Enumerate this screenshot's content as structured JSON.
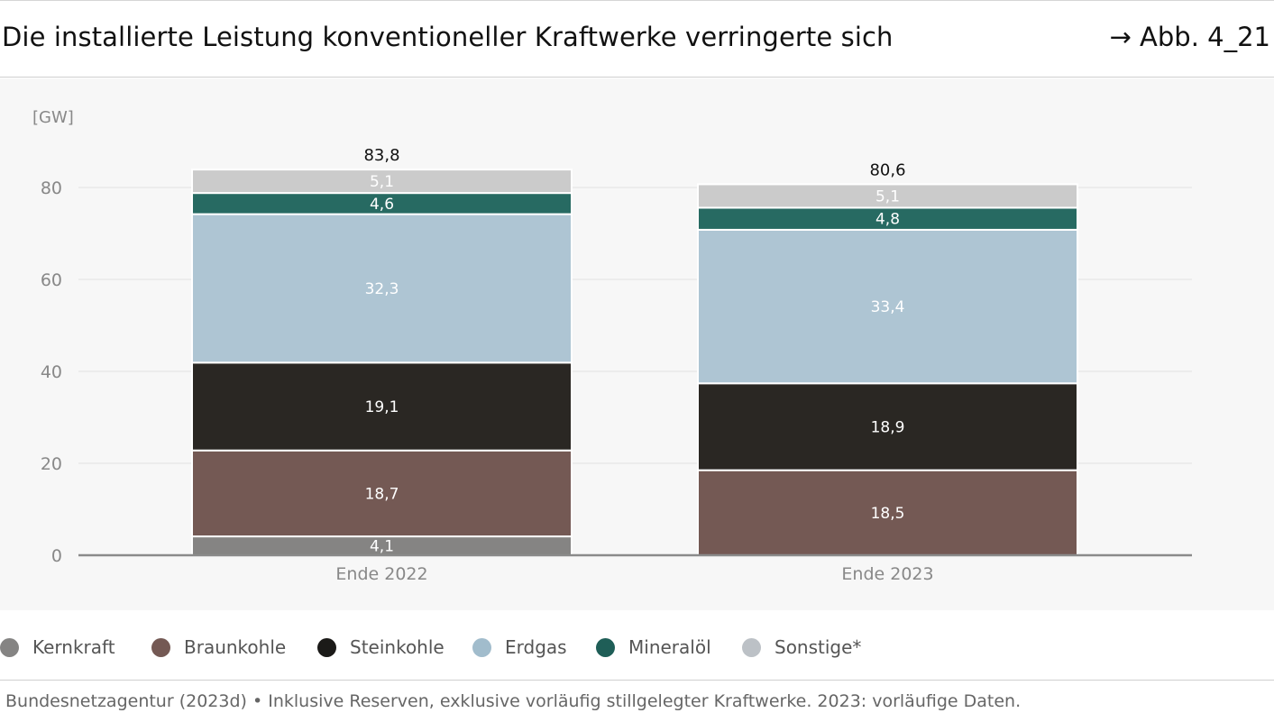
{
  "header": {
    "title": "Die installierte Leistung konventioneller Kraftwerke verringerte sich",
    "figure_ref": "→ Abb. 4_21"
  },
  "chart_data": {
    "type": "bar",
    "stacked": true,
    "ylabel": "[GW]",
    "ylim": [
      0,
      80
    ],
    "yticks": [
      0,
      20,
      40,
      60,
      80
    ],
    "grid": true,
    "categories": [
      "Ende 2022",
      "Ende 2023"
    ],
    "totals": [
      "83,8",
      "80,6"
    ],
    "series": [
      {
        "name": "Kernkraft",
        "color": "#858483",
        "values": [
          4.1,
          0
        ],
        "labels": [
          "4,1",
          ""
        ]
      },
      {
        "name": "Braunkohle",
        "color": "#745954",
        "values": [
          18.7,
          18.5
        ],
        "labels": [
          "18,7",
          "18,5"
        ]
      },
      {
        "name": "Steinkohle",
        "color": "#2a2723",
        "values": [
          19.1,
          18.9
        ],
        "labels": [
          "19,1",
          "18,9"
        ]
      },
      {
        "name": "Erdgas",
        "color": "#aec5d3",
        "values": [
          32.3,
          33.4
        ],
        "labels": [
          "32,3",
          "33,4"
        ]
      },
      {
        "name": "Mineralöl",
        "color": "#276a62",
        "values": [
          4.6,
          4.8
        ],
        "labels": [
          "4,6",
          "4,8"
        ]
      },
      {
        "name": "Sonstige*",
        "color": "#cbcbcb",
        "values": [
          5.1,
          5.1
        ],
        "labels": [
          "5,1",
          "5,1"
        ]
      }
    ],
    "legend_placement": "bottom"
  },
  "legend_colors": [
    "#858483",
    "#745954",
    "#1b1a18",
    "#a1bccc",
    "#1f5e57",
    "#bcc1c6"
  ],
  "footer": {
    "source": "Bundesnetzagentur (2023d) • Inklusive Reserven, exklusive vorläufig stillgelegter Kraftwerke. 2023: vorläufige Daten."
  }
}
